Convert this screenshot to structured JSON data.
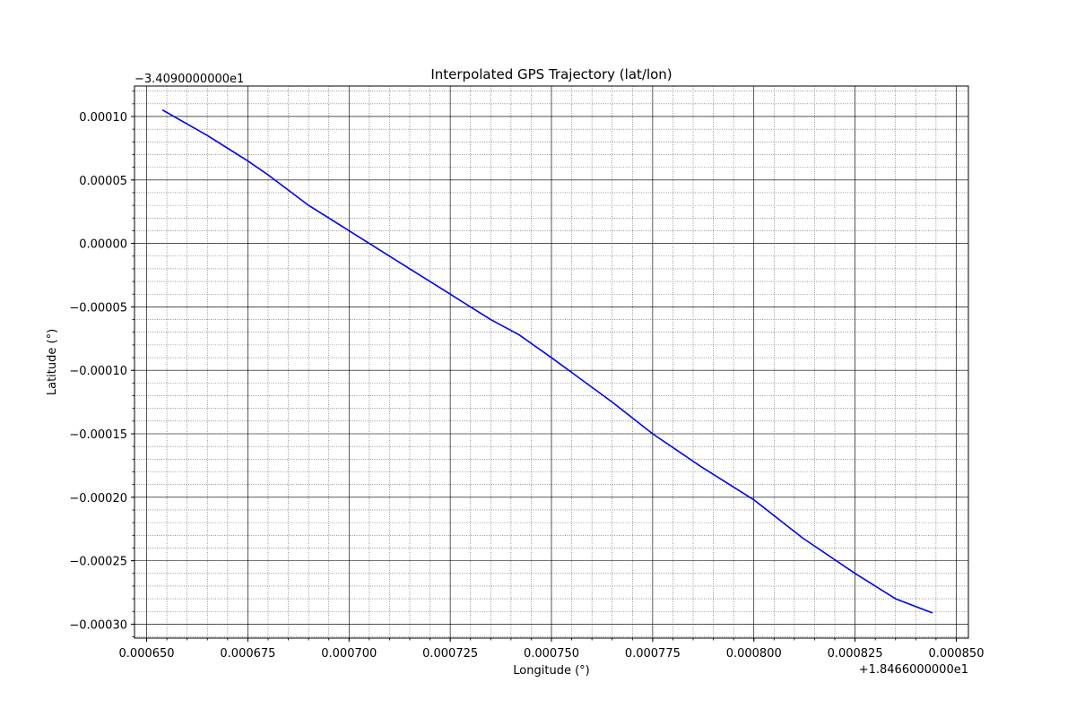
{
  "chart_data": {
    "type": "line",
    "title": "Interpolated GPS Trajectory (lat/lon)",
    "xlabel": "Longitude (°)",
    "ylabel": "Latitude (°)",
    "x_offset_label": "+1.8466000000e1",
    "y_offset_label": "−3.4090000000e1",
    "x_offset": 18.466,
    "y_offset": -34.09,
    "xlim": [
      0.000647,
      0.000853
    ],
    "ylim": [
      -0.000311,
      0.000124
    ],
    "x_ticks": [
      0.00065,
      0.000675,
      0.0007,
      0.000725,
      0.00075,
      0.000775,
      0.0008,
      0.000825,
      0.00085
    ],
    "x_tick_labels": [
      "0.000650",
      "0.000675",
      "0.000700",
      "0.000725",
      "0.000750",
      "0.000775",
      "0.000800",
      "0.000825",
      "0.000850"
    ],
    "y_ticks": [
      0.0001,
      5e-05,
      0.0,
      -5e-05,
      -0.0001,
      -0.00015,
      -0.0002,
      -0.00025,
      -0.0003
    ],
    "y_tick_labels": [
      "0.00010",
      "0.00005",
      "0.00000",
      "−0.00005",
      "−0.00010",
      "−0.00015",
      "−0.00020",
      "−0.00025",
      "−0.00030"
    ],
    "grid": true,
    "minor_grid": true,
    "series": [
      {
        "color": "#0000ee",
        "x": [
          0.000654,
          0.000665,
          0.000675,
          0.00068,
          0.00069,
          0.0007,
          0.00071,
          0.000725,
          0.000735,
          0.000742,
          0.00075,
          0.000765,
          0.000775,
          0.000787,
          0.0008,
          0.000812,
          0.000825,
          0.000835,
          0.000844
        ],
        "y": [
          0.000105,
          8.5e-05,
          6.5e-05,
          5.4e-05,
          3e-05,
          1e-05,
          -1e-05,
          -4e-05,
          -6e-05,
          -7.2e-05,
          -9e-05,
          -0.000125,
          -0.00015,
          -0.000176,
          -0.000202,
          -0.000232,
          -0.00026,
          -0.00028,
          -0.000291
        ]
      }
    ]
  }
}
